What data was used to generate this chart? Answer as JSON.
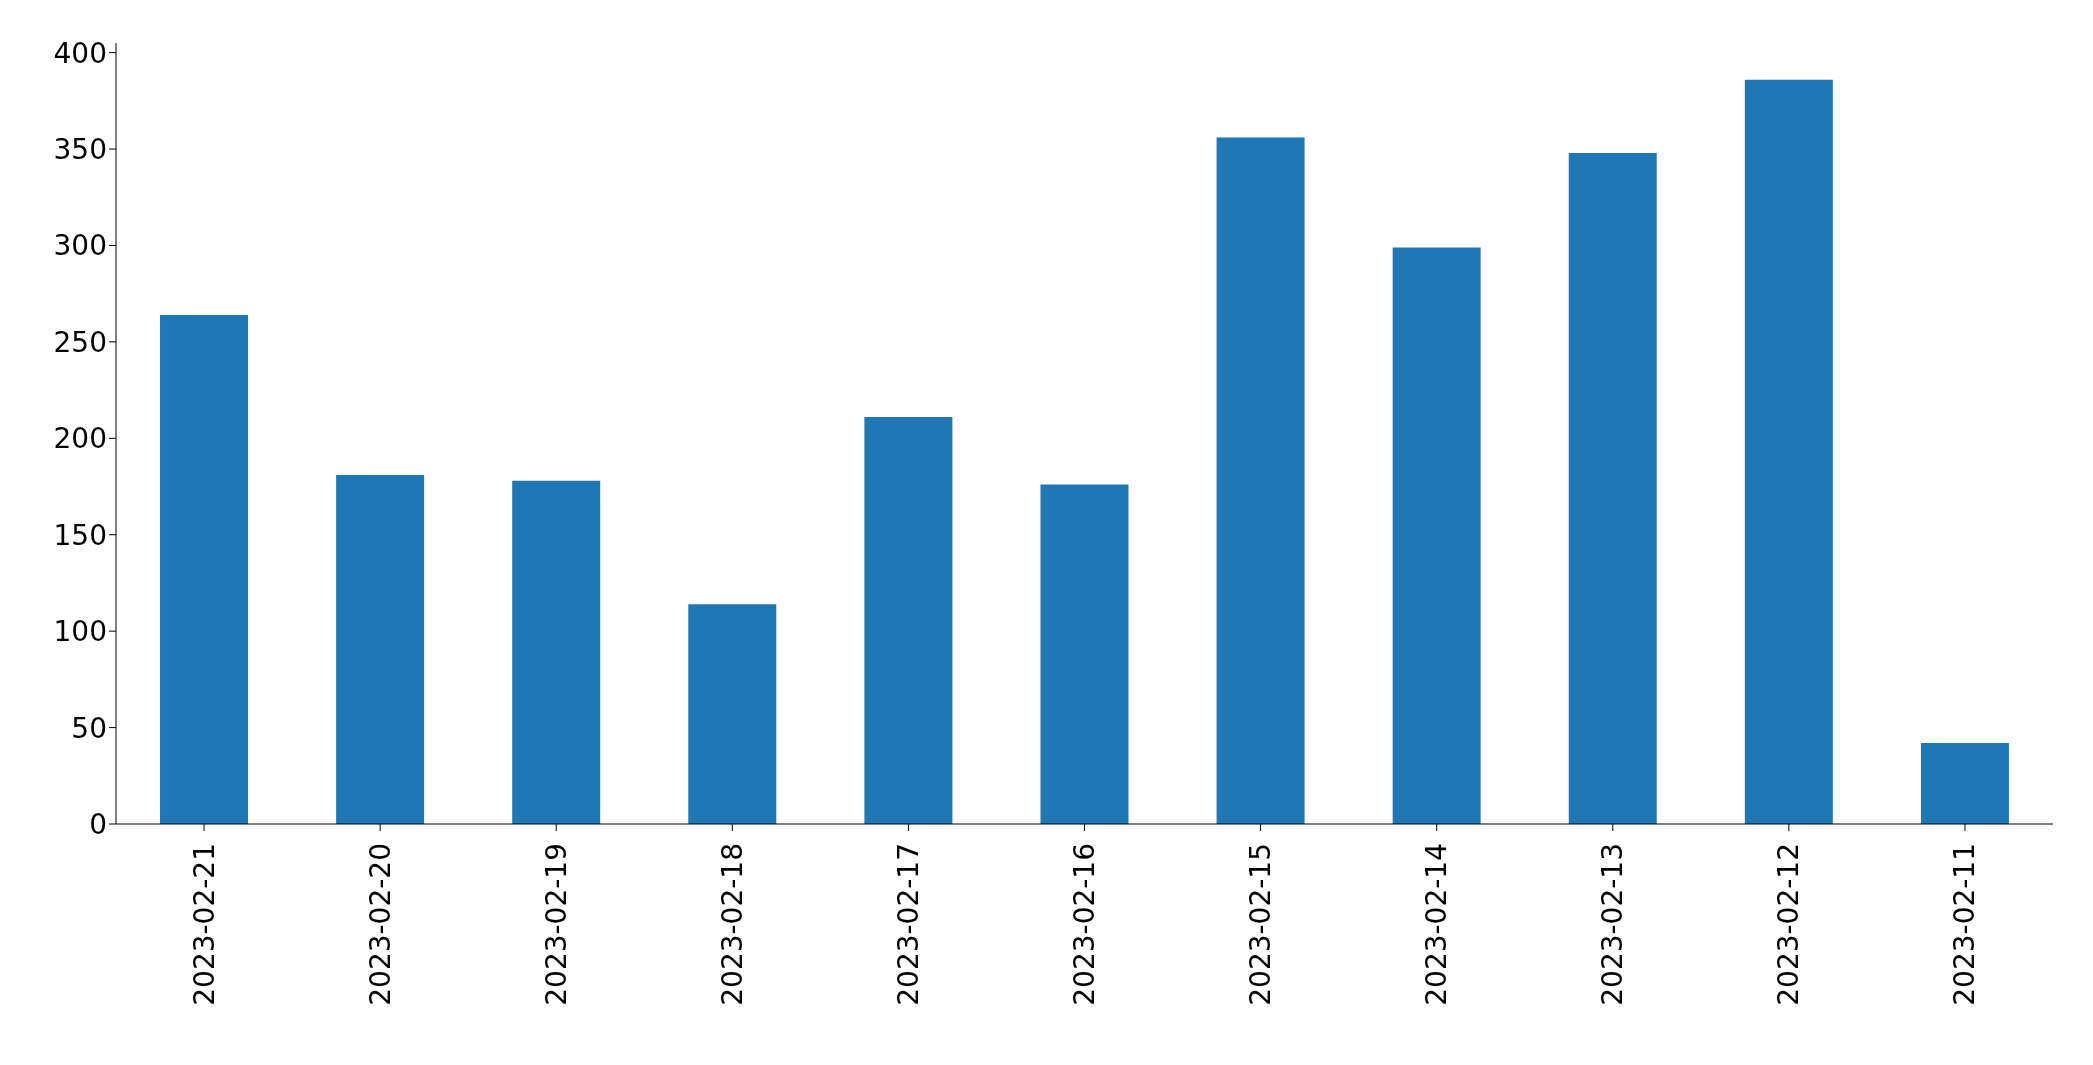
{
  "chart_data": {
    "type": "bar",
    "categories": [
      "2023-02-21",
      "2023-02-20",
      "2023-02-19",
      "2023-02-18",
      "2023-02-17",
      "2023-02-16",
      "2023-02-15",
      "2023-02-14",
      "2023-02-13",
      "2023-02-12",
      "2023-02-11"
    ],
    "values": [
      264,
      181,
      178,
      114,
      211,
      176,
      356,
      299,
      348,
      386,
      42
    ],
    "color": "#1f77b4",
    "ylim": [
      0,
      405
    ],
    "yticks": [
      0,
      50,
      100,
      150,
      200,
      250,
      300,
      350,
      400
    ],
    "grid": false
  }
}
